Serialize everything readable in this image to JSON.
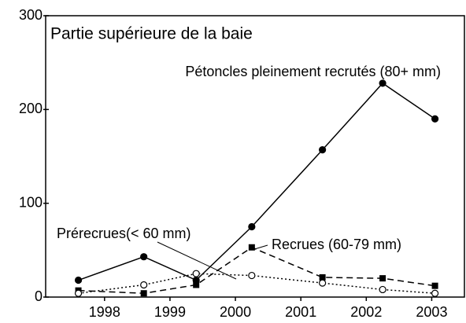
{
  "chart_data": {
    "type": "line",
    "title": "Partie supérieure de la baie",
    "x": [
      1997.6,
      1998.6,
      1999.4,
      2000.25,
      2001.33,
      2002.25,
      2003.05
    ],
    "series": [
      {
        "name": "Pétoncles pleinement recrutés (80+ mm)",
        "color": "#000000",
        "marker": "filled-circle",
        "dash": "solid",
        "values": [
          18,
          43,
          18,
          75,
          157,
          228,
          190
        ]
      },
      {
        "name": "Recrues (60-79 mm)",
        "color": "#000000",
        "marker": "filled-square",
        "dash": "dashed",
        "values": [
          7,
          4,
          13,
          53,
          21,
          20,
          12
        ]
      },
      {
        "name": "Prérecrues(< 60 mm)",
        "color": "#000000",
        "marker": "open-circle",
        "dash": "dotted",
        "values": [
          4,
          13,
          25,
          23,
          15,
          8,
          4
        ]
      }
    ],
    "xlim": [
      1997.1,
      2003.5
    ],
    "xticks": [
      1998,
      1999,
      2000,
      2001,
      2002,
      2003
    ],
    "ylim": [
      0,
      300
    ],
    "yticks": [
      0,
      100,
      200,
      300
    ]
  }
}
